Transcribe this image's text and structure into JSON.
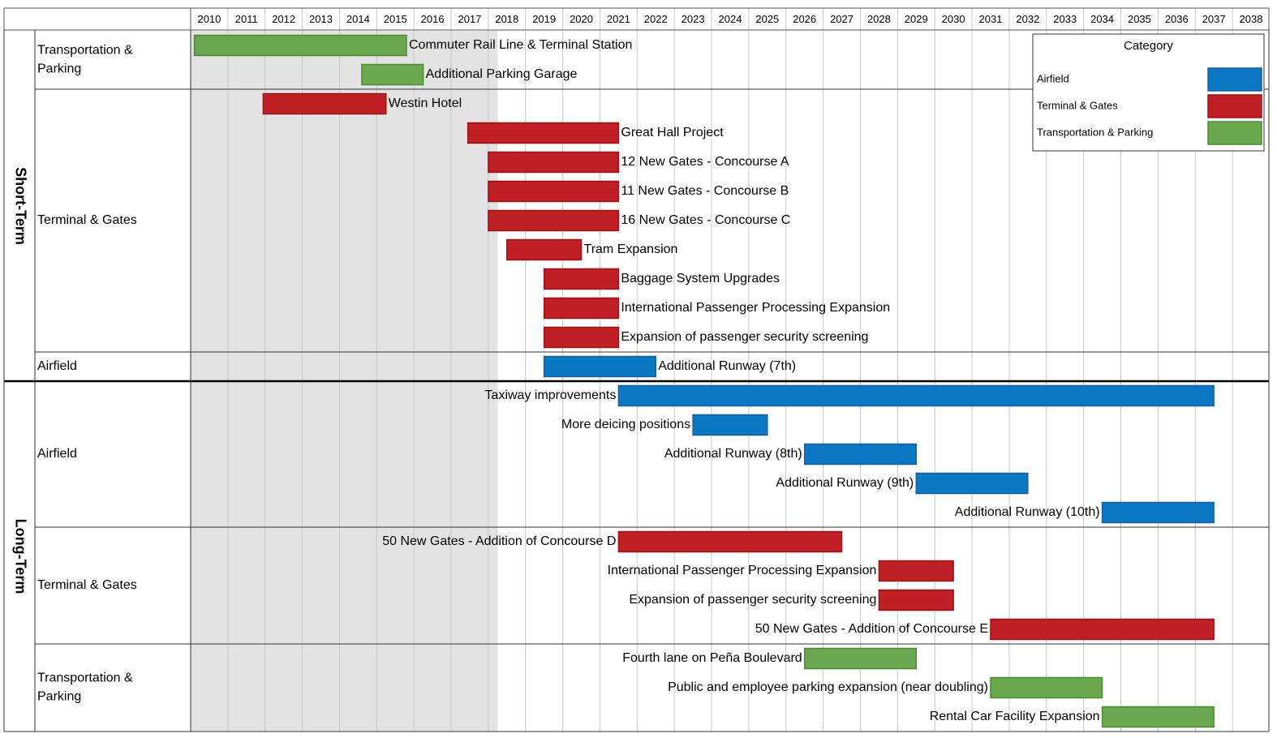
{
  "chart_data": {
    "type": "gantt",
    "years": [
      2010,
      2011,
      2012,
      2013,
      2014,
      2015,
      2016,
      2017,
      2018,
      2019,
      2020,
      2021,
      2022,
      2023,
      2024,
      2025,
      2026,
      2027,
      2028,
      2029,
      2030,
      2031,
      2032,
      2033,
      2034,
      2035,
      2036,
      2037,
      2038
    ],
    "shaded_until": 2018.25,
    "colors": {
      "Airfield": "#0a78c2",
      "Terminal & Gates": "#c01f25",
      "Transportation & Parking": "#6aa84f"
    },
    "border_colors": {
      "Airfield": "#1f5f99",
      "Terminal & Gates": "#9c1318",
      "Transportation & Parking": "#4e8a33"
    },
    "legend": {
      "title": "Category",
      "items": [
        "Airfield",
        "Terminal & Gates",
        "Transportation & Parking"
      ],
      "position": "top-right"
    },
    "phases": [
      {
        "name": "Short-Term",
        "groups": [
          {
            "label": "Transportation &\nParking",
            "category": "Transportation & Parking",
            "tasks": [
              {
                "name": "Commuter Rail Line & Terminal Station",
                "start": 2010.1,
                "end": 2015.8,
                "label_side": "right"
              },
              {
                "name": "Additional Parking Garage",
                "start": 2014.6,
                "end": 2016.25,
                "label_side": "right"
              }
            ]
          },
          {
            "label": "Terminal & Gates",
            "category": "Terminal & Gates",
            "tasks": [
              {
                "name": "Westin Hotel",
                "start": 2011.95,
                "end": 2015.25,
                "label_side": "right"
              },
              {
                "name": "Great Hall Project",
                "start": 2017.45,
                "end": 2021.5,
                "label_side": "right"
              },
              {
                "name": "12 New Gates - Concourse A",
                "start": 2018.0,
                "end": 2021.5,
                "label_side": "right"
              },
              {
                "name": "11 New Gates - Concourse B",
                "start": 2018.0,
                "end": 2021.5,
                "label_side": "right"
              },
              {
                "name": "16 New Gates - Concourse C",
                "start": 2018.0,
                "end": 2021.5,
                "label_side": "right"
              },
              {
                "name": "Tram Expansion",
                "start": 2018.5,
                "end": 2020.5,
                "label_side": "right"
              },
              {
                "name": "Baggage System Upgrades",
                "start": 2019.5,
                "end": 2021.5,
                "label_side": "right"
              },
              {
                "name": "International Passenger Processing Expansion",
                "start": 2019.5,
                "end": 2021.5,
                "label_side": "right"
              },
              {
                "name": "Expansion of passenger security screening",
                "start": 2019.5,
                "end": 2021.5,
                "label_side": "right"
              }
            ]
          },
          {
            "label": "Airfield",
            "category": "Airfield",
            "tasks": [
              {
                "name": "Additional Runway (7th)",
                "start": 2019.5,
                "end": 2022.5,
                "label_side": "right"
              }
            ]
          }
        ]
      },
      {
        "name": "Long-Term",
        "groups": [
          {
            "label": "Airfield",
            "category": "Airfield",
            "tasks": [
              {
                "name": "Taxiway improvements",
                "start": 2021.5,
                "end": 2037.5,
                "label_side": "left"
              },
              {
                "name": "More deicing positions",
                "start": 2023.5,
                "end": 2025.5,
                "label_side": "left"
              },
              {
                "name": "Additional Runway (8th)",
                "start": 2026.5,
                "end": 2029.5,
                "label_side": "left"
              },
              {
                "name": "Additional Runway (9th)",
                "start": 2029.5,
                "end": 2032.5,
                "label_side": "left"
              },
              {
                "name": "Additional Runway (10th)",
                "start": 2034.5,
                "end": 2037.5,
                "label_side": "left"
              }
            ]
          },
          {
            "label": "Terminal & Gates",
            "category": "Terminal & Gates",
            "tasks": [
              {
                "name": "50 New Gates - Addition of Concourse D",
                "start": 2021.5,
                "end": 2027.5,
                "label_side": "left"
              },
              {
                "name": "International Passenger Processing Expansion",
                "start": 2028.5,
                "end": 2030.5,
                "label_side": "left"
              },
              {
                "name": "Expansion of passenger security screening",
                "start": 2028.5,
                "end": 2030.5,
                "label_side": "left"
              },
              {
                "name": "50 New Gates - Addition of Concourse E",
                "start": 2031.5,
                "end": 2037.5,
                "label_side": "left"
              }
            ]
          },
          {
            "label": "Transportation &\nParking",
            "category": "Transportation & Parking",
            "tasks": [
              {
                "name": "Fourth lane on Peña Boulevard",
                "start": 2026.5,
                "end": 2029.5,
                "label_side": "left"
              },
              {
                "name": "Public and employee parking expansion (near doubling)",
                "start": 2031.5,
                "end": 2034.5,
                "label_side": "left"
              },
              {
                "name": "Rental Car Facility Expansion",
                "start": 2034.5,
                "end": 2037.5,
                "label_side": "left"
              }
            ]
          }
        ]
      }
    ]
  }
}
